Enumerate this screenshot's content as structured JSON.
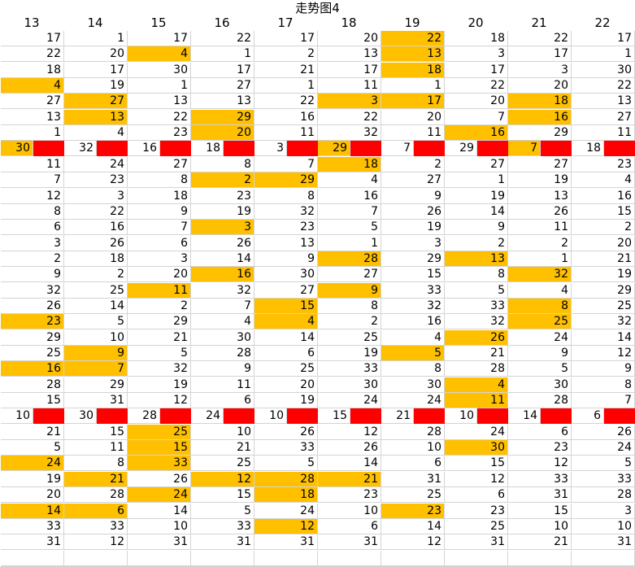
{
  "sheet_title": "走势图4",
  "columns": [
    "13",
    "14",
    "15",
    "16",
    "17",
    "18",
    "19",
    "20",
    "21",
    "22"
  ],
  "rows": [
    [
      "17",
      "1",
      "17",
      "22",
      "17",
      "20",
      "22",
      "18",
      "22",
      "17"
    ],
    [
      "22",
      "20",
      "4",
      "1",
      "2",
      "13",
      "13",
      "3",
      "17",
      "1"
    ],
    [
      "18",
      "17",
      "30",
      "17",
      "21",
      "17",
      "18",
      "17",
      "3",
      "30"
    ],
    [
      "4",
      "19",
      "1",
      "27",
      "1",
      "11",
      "1",
      "22",
      "20",
      "22"
    ],
    [
      "27",
      "27",
      "13",
      "13",
      "22",
      "3",
      "17",
      "20",
      "18",
      "13"
    ],
    [
      "13",
      "13",
      "22",
      "29",
      "16",
      "22",
      "20",
      "7",
      "16",
      "27"
    ],
    [
      "1",
      "4",
      "23",
      "20",
      "11",
      "32",
      "11",
      "16",
      "29",
      "11"
    ],
    [
      "30",
      "32",
      "16",
      "18",
      "3",
      "29",
      "7",
      "29",
      "7",
      "18"
    ],
    [
      "11",
      "24",
      "27",
      "8",
      "7",
      "18",
      "2",
      "27",
      "27",
      "23"
    ],
    [
      "7",
      "23",
      "8",
      "2",
      "29",
      "4",
      "27",
      "1",
      "19",
      "4"
    ],
    [
      "12",
      "3",
      "18",
      "23",
      "8",
      "16",
      "9",
      "19",
      "13",
      "16"
    ],
    [
      "8",
      "22",
      "9",
      "19",
      "32",
      "7",
      "26",
      "14",
      "26",
      "15"
    ],
    [
      "6",
      "16",
      "7",
      "3",
      "23",
      "5",
      "19",
      "9",
      "11",
      "2"
    ],
    [
      "3",
      "26",
      "6",
      "26",
      "13",
      "1",
      "3",
      "2",
      "2",
      "20"
    ],
    [
      "2",
      "18",
      "3",
      "14",
      "9",
      "28",
      "29",
      "13",
      "1",
      "21"
    ],
    [
      "9",
      "2",
      "20",
      "16",
      "30",
      "27",
      "15",
      "8",
      "32",
      "19"
    ],
    [
      "32",
      "25",
      "11",
      "32",
      "27",
      "9",
      "33",
      "5",
      "4",
      "29"
    ],
    [
      "26",
      "14",
      "2",
      "7",
      "15",
      "8",
      "32",
      "33",
      "8",
      "25"
    ],
    [
      "23",
      "5",
      "29",
      "4",
      "4",
      "2",
      "16",
      "32",
      "25",
      "32"
    ],
    [
      "29",
      "10",
      "21",
      "30",
      "14",
      "25",
      "4",
      "26",
      "24",
      "14"
    ],
    [
      "25",
      "9",
      "5",
      "28",
      "6",
      "19",
      "5",
      "21",
      "9",
      "12"
    ],
    [
      "16",
      "7",
      "32",
      "9",
      "25",
      "33",
      "8",
      "28",
      "5",
      "9"
    ],
    [
      "28",
      "29",
      "19",
      "11",
      "20",
      "30",
      "30",
      "4",
      "30",
      "8"
    ],
    [
      "15",
      "31",
      "12",
      "6",
      "19",
      "24",
      "24",
      "11",
      "28",
      "7"
    ],
    [
      "10",
      "30",
      "28",
      "24",
      "10",
      "15",
      "21",
      "10",
      "14",
      "6"
    ],
    [
      "21",
      "15",
      "25",
      "10",
      "26",
      "12",
      "28",
      "24",
      "6",
      "26"
    ],
    [
      "5",
      "11",
      "15",
      "21",
      "33",
      "26",
      "10",
      "30",
      "23",
      "24"
    ],
    [
      "24",
      "8",
      "33",
      "25",
      "5",
      "14",
      "6",
      "15",
      "12",
      "5"
    ],
    [
      "19",
      "21",
      "26",
      "12",
      "28",
      "21",
      "31",
      "12",
      "33",
      "33"
    ],
    [
      "20",
      "28",
      "24",
      "15",
      "18",
      "23",
      "25",
      "6",
      "31",
      "28"
    ],
    [
      "14",
      "6",
      "14",
      "5",
      "24",
      "10",
      "23",
      "23",
      "15",
      "3"
    ],
    [
      "33",
      "33",
      "10",
      "33",
      "12",
      "6",
      "14",
      "25",
      "10",
      "10"
    ],
    [
      "31",
      "12",
      "31",
      "31",
      "31",
      "31",
      "12",
      "31",
      "21",
      "31"
    ]
  ],
  "highlighted": [
    [
      0,
      6
    ],
    [
      1,
      2
    ],
    [
      1,
      6
    ],
    [
      2,
      6
    ],
    [
      3,
      0
    ],
    [
      4,
      1
    ],
    [
      4,
      5
    ],
    [
      4,
      6
    ],
    [
      4,
      8
    ],
    [
      5,
      1
    ],
    [
      5,
      3
    ],
    [
      5,
      8
    ],
    [
      6,
      3
    ],
    [
      6,
      7
    ],
    [
      7,
      0
    ],
    [
      7,
      5
    ],
    [
      7,
      8
    ],
    [
      8,
      5
    ],
    [
      9,
      3
    ],
    [
      9,
      4
    ],
    [
      12,
      3
    ],
    [
      14,
      5
    ],
    [
      14,
      7
    ],
    [
      15,
      3
    ],
    [
      15,
      8
    ],
    [
      16,
      2
    ],
    [
      16,
      5
    ],
    [
      17,
      4
    ],
    [
      17,
      8
    ],
    [
      18,
      0
    ],
    [
      18,
      4
    ],
    [
      18,
      8
    ],
    [
      19,
      7
    ],
    [
      20,
      1
    ],
    [
      20,
      6
    ],
    [
      21,
      0
    ],
    [
      21,
      1
    ],
    [
      22,
      7
    ],
    [
      23,
      7
    ],
    [
      25,
      2
    ],
    [
      26,
      2
    ],
    [
      26,
      7
    ],
    [
      27,
      0
    ],
    [
      27,
      2
    ],
    [
      28,
      1
    ],
    [
      28,
      3
    ],
    [
      28,
      4
    ],
    [
      28,
      5
    ],
    [
      29,
      2
    ],
    [
      29,
      4
    ],
    [
      30,
      0
    ],
    [
      30,
      1
    ],
    [
      30,
      6
    ],
    [
      31,
      4
    ]
  ],
  "red_marker_rows": [
    7,
    24
  ],
  "colors": {
    "highlight": "#ffc000",
    "marker": "#ff0000",
    "grid": "#d4d4d4"
  }
}
